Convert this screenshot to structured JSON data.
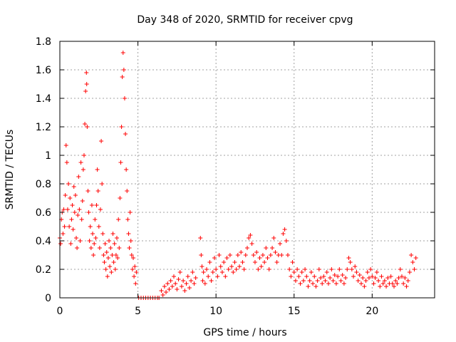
{
  "chart_data": {
    "type": "scatter",
    "title": "Day 348 of 2020, SRMTID for receiver cpvg",
    "xlabel": "GPS time / hours",
    "ylabel": "SRMTID / TECUs",
    "xlim": [
      0,
      24
    ],
    "ylim": [
      0,
      1.8
    ],
    "xticks": [
      0,
      5,
      10,
      15,
      20
    ],
    "xtick_labels": [
      "0",
      "5",
      "10",
      "15",
      "20"
    ],
    "yticks": [
      0,
      0.2,
      0.4,
      0.6,
      0.8,
      1,
      1.2,
      1.4,
      1.6,
      1.8
    ],
    "ytick_labels": [
      "0",
      "0.2",
      "0.4",
      "0.6",
      "0.8",
      "1",
      "1.2",
      "1.4",
      "1.6",
      "1.8"
    ],
    "grid": true,
    "marker": "+",
    "color": "#ff0000",
    "series": [
      {
        "name": "SRMTID",
        "points": [
          [
            0.0,
            0.42
          ],
          [
            0.05,
            0.38
          ],
          [
            0.1,
            0.55
          ],
          [
            0.15,
            0.6
          ],
          [
            0.2,
            0.45
          ],
          [
            0.25,
            0.62
          ],
          [
            0.3,
            0.5
          ],
          [
            0.35,
            0.72
          ],
          [
            0.4,
            1.07
          ],
          [
            0.45,
            0.95
          ],
          [
            0.5,
            0.62
          ],
          [
            0.55,
            0.8
          ],
          [
            0.6,
            0.5
          ],
          [
            0.65,
            0.7
          ],
          [
            0.7,
            0.38
          ],
          [
            0.75,
            0.55
          ],
          [
            0.8,
            0.65
          ],
          [
            0.85,
            0.48
          ],
          [
            0.9,
            0.78
          ],
          [
            0.95,
            0.6
          ],
          [
            1.0,
            0.72
          ],
          [
            1.05,
            0.42
          ],
          [
            1.1,
            0.35
          ],
          [
            1.15,
            0.58
          ],
          [
            1.2,
            0.85
          ],
          [
            1.25,
            0.62
          ],
          [
            1.3,
            0.4
          ],
          [
            1.35,
            0.95
          ],
          [
            1.4,
            0.55
          ],
          [
            1.45,
            0.68
          ],
          [
            1.5,
            0.9
          ],
          [
            1.55,
            1.0
          ],
          [
            1.6,
            1.22
          ],
          [
            1.65,
            1.45
          ],
          [
            1.7,
            1.58
          ],
          [
            1.72,
            1.5
          ],
          [
            1.75,
            1.2
          ],
          [
            1.8,
            0.75
          ],
          [
            1.85,
            0.6
          ],
          [
            1.9,
            0.4
          ],
          [
            1.95,
            0.5
          ],
          [
            2.0,
            0.35
          ],
          [
            2.05,
            0.65
          ],
          [
            2.1,
            0.45
          ],
          [
            2.15,
            0.3
          ],
          [
            2.2,
            0.38
          ],
          [
            2.25,
            0.55
          ],
          [
            2.3,
            0.42
          ],
          [
            2.35,
            0.65
          ],
          [
            2.4,
            0.9
          ],
          [
            2.45,
            0.75
          ],
          [
            2.5,
            0.5
          ],
          [
            2.55,
            0.35
          ],
          [
            2.6,
            0.62
          ],
          [
            2.65,
            1.1
          ],
          [
            2.7,
            0.8
          ],
          [
            2.75,
            0.45
          ],
          [
            2.8,
            0.3
          ],
          [
            2.85,
            0.25
          ],
          [
            2.9,
            0.38
          ],
          [
            2.95,
            0.2
          ],
          [
            3.0,
            0.32
          ],
          [
            3.05,
            0.15
          ],
          [
            3.1,
            0.28
          ],
          [
            3.15,
            0.4
          ],
          [
            3.2,
            0.22
          ],
          [
            3.25,
            0.35
          ],
          [
            3.3,
            0.18
          ],
          [
            3.35,
            0.3
          ],
          [
            3.4,
            0.45
          ],
          [
            3.45,
            0.25
          ],
          [
            3.5,
            0.38
          ],
          [
            3.55,
            0.2
          ],
          [
            3.6,
            0.3
          ],
          [
            3.65,
            0.42
          ],
          [
            3.7,
            0.28
          ],
          [
            3.75,
            0.55
          ],
          [
            3.8,
            0.35
          ],
          [
            3.85,
            0.7
          ],
          [
            3.9,
            0.95
          ],
          [
            3.95,
            1.2
          ],
          [
            4.0,
            1.55
          ],
          [
            4.05,
            1.72
          ],
          [
            4.1,
            1.6
          ],
          [
            4.15,
            1.4
          ],
          [
            4.2,
            1.15
          ],
          [
            4.25,
            0.9
          ],
          [
            4.3,
            0.75
          ],
          [
            4.35,
            0.55
          ],
          [
            4.4,
            0.45
          ],
          [
            4.45,
            0.35
          ],
          [
            4.5,
            0.6
          ],
          [
            4.55,
            0.4
          ],
          [
            4.6,
            0.3
          ],
          [
            4.65,
            0.2
          ],
          [
            4.7,
            0.28
          ],
          [
            4.75,
            0.15
          ],
          [
            4.8,
            0.22
          ],
          [
            4.85,
            0.1
          ],
          [
            4.9,
            0.18
          ],
          [
            5.05,
            0.0
          ],
          [
            5.2,
            0.0
          ],
          [
            5.35,
            0.0
          ],
          [
            5.5,
            0.0
          ],
          [
            5.65,
            0.0
          ],
          [
            5.8,
            0.0
          ],
          [
            5.95,
            0.0
          ],
          [
            6.1,
            0.0
          ],
          [
            6.25,
            0.0
          ],
          [
            6.35,
            0.0
          ],
          [
            6.5,
            0.05
          ],
          [
            6.6,
            0.02
          ],
          [
            6.7,
            0.08
          ],
          [
            6.8,
            0.04
          ],
          [
            6.9,
            0.1
          ],
          [
            7.0,
            0.06
          ],
          [
            7.1,
            0.12
          ],
          [
            7.2,
            0.08
          ],
          [
            7.3,
            0.15
          ],
          [
            7.4,
            0.1
          ],
          [
            7.5,
            0.06
          ],
          [
            7.6,
            0.13
          ],
          [
            7.7,
            0.18
          ],
          [
            7.8,
            0.08
          ],
          [
            7.9,
            0.12
          ],
          [
            8.0,
            0.05
          ],
          [
            8.1,
            0.1
          ],
          [
            8.2,
            0.15
          ],
          [
            8.3,
            0.07
          ],
          [
            8.4,
            0.12
          ],
          [
            8.5,
            0.18
          ],
          [
            8.6,
            0.1
          ],
          [
            8.7,
            0.14
          ],
          [
            9.0,
            0.42
          ],
          [
            9.05,
            0.3
          ],
          [
            9.1,
            0.22
          ],
          [
            9.15,
            0.12
          ],
          [
            9.2,
            0.18
          ],
          [
            9.3,
            0.1
          ],
          [
            9.4,
            0.2
          ],
          [
            9.5,
            0.15
          ],
          [
            9.6,
            0.25
          ],
          [
            9.7,
            0.12
          ],
          [
            9.8,
            0.18
          ],
          [
            9.9,
            0.28
          ],
          [
            10.0,
            0.2
          ],
          [
            10.1,
            0.15
          ],
          [
            10.2,
            0.3
          ],
          [
            10.3,
            0.22
          ],
          [
            10.4,
            0.18
          ],
          [
            10.5,
            0.25
          ],
          [
            10.6,
            0.15
          ],
          [
            10.7,
            0.28
          ],
          [
            10.8,
            0.2
          ],
          [
            10.9,
            0.3
          ],
          [
            11.0,
            0.22
          ],
          [
            11.1,
            0.18
          ],
          [
            11.2,
            0.25
          ],
          [
            11.3,
            0.2
          ],
          [
            11.4,
            0.3
          ],
          [
            11.5,
            0.22
          ],
          [
            11.6,
            0.32
          ],
          [
            11.7,
            0.25
          ],
          [
            11.8,
            0.2
          ],
          [
            11.9,
            0.3
          ],
          [
            12.0,
            0.35
          ],
          [
            12.1,
            0.42
          ],
          [
            12.2,
            0.44
          ],
          [
            12.3,
            0.38
          ],
          [
            12.4,
            0.3
          ],
          [
            12.5,
            0.25
          ],
          [
            12.6,
            0.32
          ],
          [
            12.7,
            0.2
          ],
          [
            12.8,
            0.28
          ],
          [
            12.9,
            0.22
          ],
          [
            13.0,
            0.3
          ],
          [
            13.1,
            0.25
          ],
          [
            13.2,
            0.35
          ],
          [
            13.3,
            0.28
          ],
          [
            13.4,
            0.2
          ],
          [
            13.5,
            0.3
          ],
          [
            13.6,
            0.35
          ],
          [
            13.7,
            0.42
          ],
          [
            13.8,
            0.32
          ],
          [
            13.9,
            0.25
          ],
          [
            14.0,
            0.3
          ],
          [
            14.1,
            0.38
          ],
          [
            14.2,
            0.3
          ],
          [
            14.3,
            0.45
          ],
          [
            14.4,
            0.48
          ],
          [
            14.5,
            0.4
          ],
          [
            14.6,
            0.3
          ],
          [
            14.7,
            0.2
          ],
          [
            14.8,
            0.15
          ],
          [
            14.9,
            0.25
          ],
          [
            15.0,
            0.18
          ],
          [
            15.1,
            0.12
          ],
          [
            15.2,
            0.2
          ],
          [
            15.3,
            0.15
          ],
          [
            15.4,
            0.1
          ],
          [
            15.5,
            0.18
          ],
          [
            15.6,
            0.12
          ],
          [
            15.7,
            0.2
          ],
          [
            15.8,
            0.15
          ],
          [
            15.9,
            0.08
          ],
          [
            16.0,
            0.12
          ],
          [
            16.1,
            0.18
          ],
          [
            16.2,
            0.1
          ],
          [
            16.3,
            0.15
          ],
          [
            16.4,
            0.08
          ],
          [
            16.5,
            0.12
          ],
          [
            16.6,
            0.2
          ],
          [
            16.7,
            0.14
          ],
          [
            16.8,
            0.1
          ],
          [
            16.9,
            0.15
          ],
          [
            17.0,
            0.12
          ],
          [
            17.1,
            0.18
          ],
          [
            17.2,
            0.1
          ],
          [
            17.3,
            0.14
          ],
          [
            17.4,
            0.2
          ],
          [
            17.5,
            0.12
          ],
          [
            17.6,
            0.16
          ],
          [
            17.7,
            0.1
          ],
          [
            17.8,
            0.15
          ],
          [
            17.9,
            0.2
          ],
          [
            18.0,
            0.12
          ],
          [
            18.1,
            0.16
          ],
          [
            18.2,
            0.1
          ],
          [
            18.3,
            0.14
          ],
          [
            18.4,
            0.2
          ],
          [
            18.5,
            0.28
          ],
          [
            18.6,
            0.25
          ],
          [
            18.7,
            0.2
          ],
          [
            18.8,
            0.15
          ],
          [
            18.9,
            0.22
          ],
          [
            19.0,
            0.18
          ],
          [
            19.1,
            0.12
          ],
          [
            19.2,
            0.16
          ],
          [
            19.3,
            0.1
          ],
          [
            19.4,
            0.14
          ],
          [
            19.5,
            0.08
          ],
          [
            19.6,
            0.12
          ],
          [
            19.7,
            0.18
          ],
          [
            19.8,
            0.14
          ],
          [
            19.9,
            0.2
          ],
          [
            20.0,
            0.15
          ],
          [
            20.1,
            0.1
          ],
          [
            20.2,
            0.14
          ],
          [
            20.3,
            0.18
          ],
          [
            20.4,
            0.12
          ],
          [
            20.5,
            0.08
          ],
          [
            20.6,
            0.15
          ],
          [
            20.7,
            0.1
          ],
          [
            20.8,
            0.12
          ],
          [
            20.9,
            0.08
          ],
          [
            21.0,
            0.14
          ],
          [
            21.1,
            0.1
          ],
          [
            21.2,
            0.15
          ],
          [
            21.3,
            0.1
          ],
          [
            21.4,
            0.08
          ],
          [
            21.5,
            0.12
          ],
          [
            21.6,
            0.1
          ],
          [
            21.7,
            0.14
          ],
          [
            21.8,
            0.2
          ],
          [
            21.9,
            0.15
          ],
          [
            22.0,
            0.1
          ],
          [
            22.1,
            0.14
          ],
          [
            22.2,
            0.08
          ],
          [
            22.3,
            0.12
          ],
          [
            22.4,
            0.18
          ],
          [
            22.5,
            0.3
          ],
          [
            22.6,
            0.25
          ],
          [
            22.7,
            0.2
          ],
          [
            22.8,
            0.28
          ]
        ]
      }
    ]
  }
}
